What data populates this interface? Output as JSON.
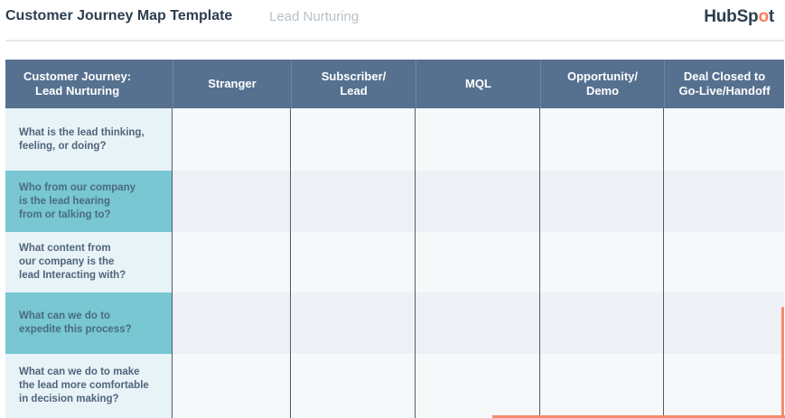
{
  "header": {
    "title": "Customer Journey Map Template",
    "subtitle": "Lead Nurturing",
    "logo_text_before": "HubSp",
    "logo_text_dot": "o",
    "logo_text_after": "t"
  },
  "table": {
    "corner_label_line1": "Customer Journey:",
    "corner_label_line2": "Lead Nurturing",
    "columns": [
      {
        "line1": "Stranger",
        "line2": ""
      },
      {
        "line1": "Subscriber/",
        "line2": "Lead"
      },
      {
        "line1": "MQL",
        "line2": ""
      },
      {
        "line1": "Opportunity/",
        "line2": "Demo"
      },
      {
        "line1": "Deal Closed to",
        "line2": "Go-Live/Handoff"
      }
    ],
    "rows": [
      {
        "l1": "What is the lead thinking,",
        "l2": "feeling, or doing?",
        "l3": ""
      },
      {
        "l1": "Who from our company",
        "l2": "is the lead hearing",
        "l3": "from or talking to?"
      },
      {
        "l1": "What content from",
        "l2": "our company is the",
        "l3": "lead Interacting with?"
      },
      {
        "l1": "What can we do to",
        "l2": "expedite this process?",
        "l3": ""
      },
      {
        "l1": "What can we do to make",
        "l2": "the lead more comfortable",
        "l3": "in decision making?"
      }
    ]
  },
  "colors": {
    "header_bg": "#56708f",
    "row_light": "#e8f3f8",
    "row_teal": "#78c7d3",
    "accent": "#f28c6b"
  }
}
